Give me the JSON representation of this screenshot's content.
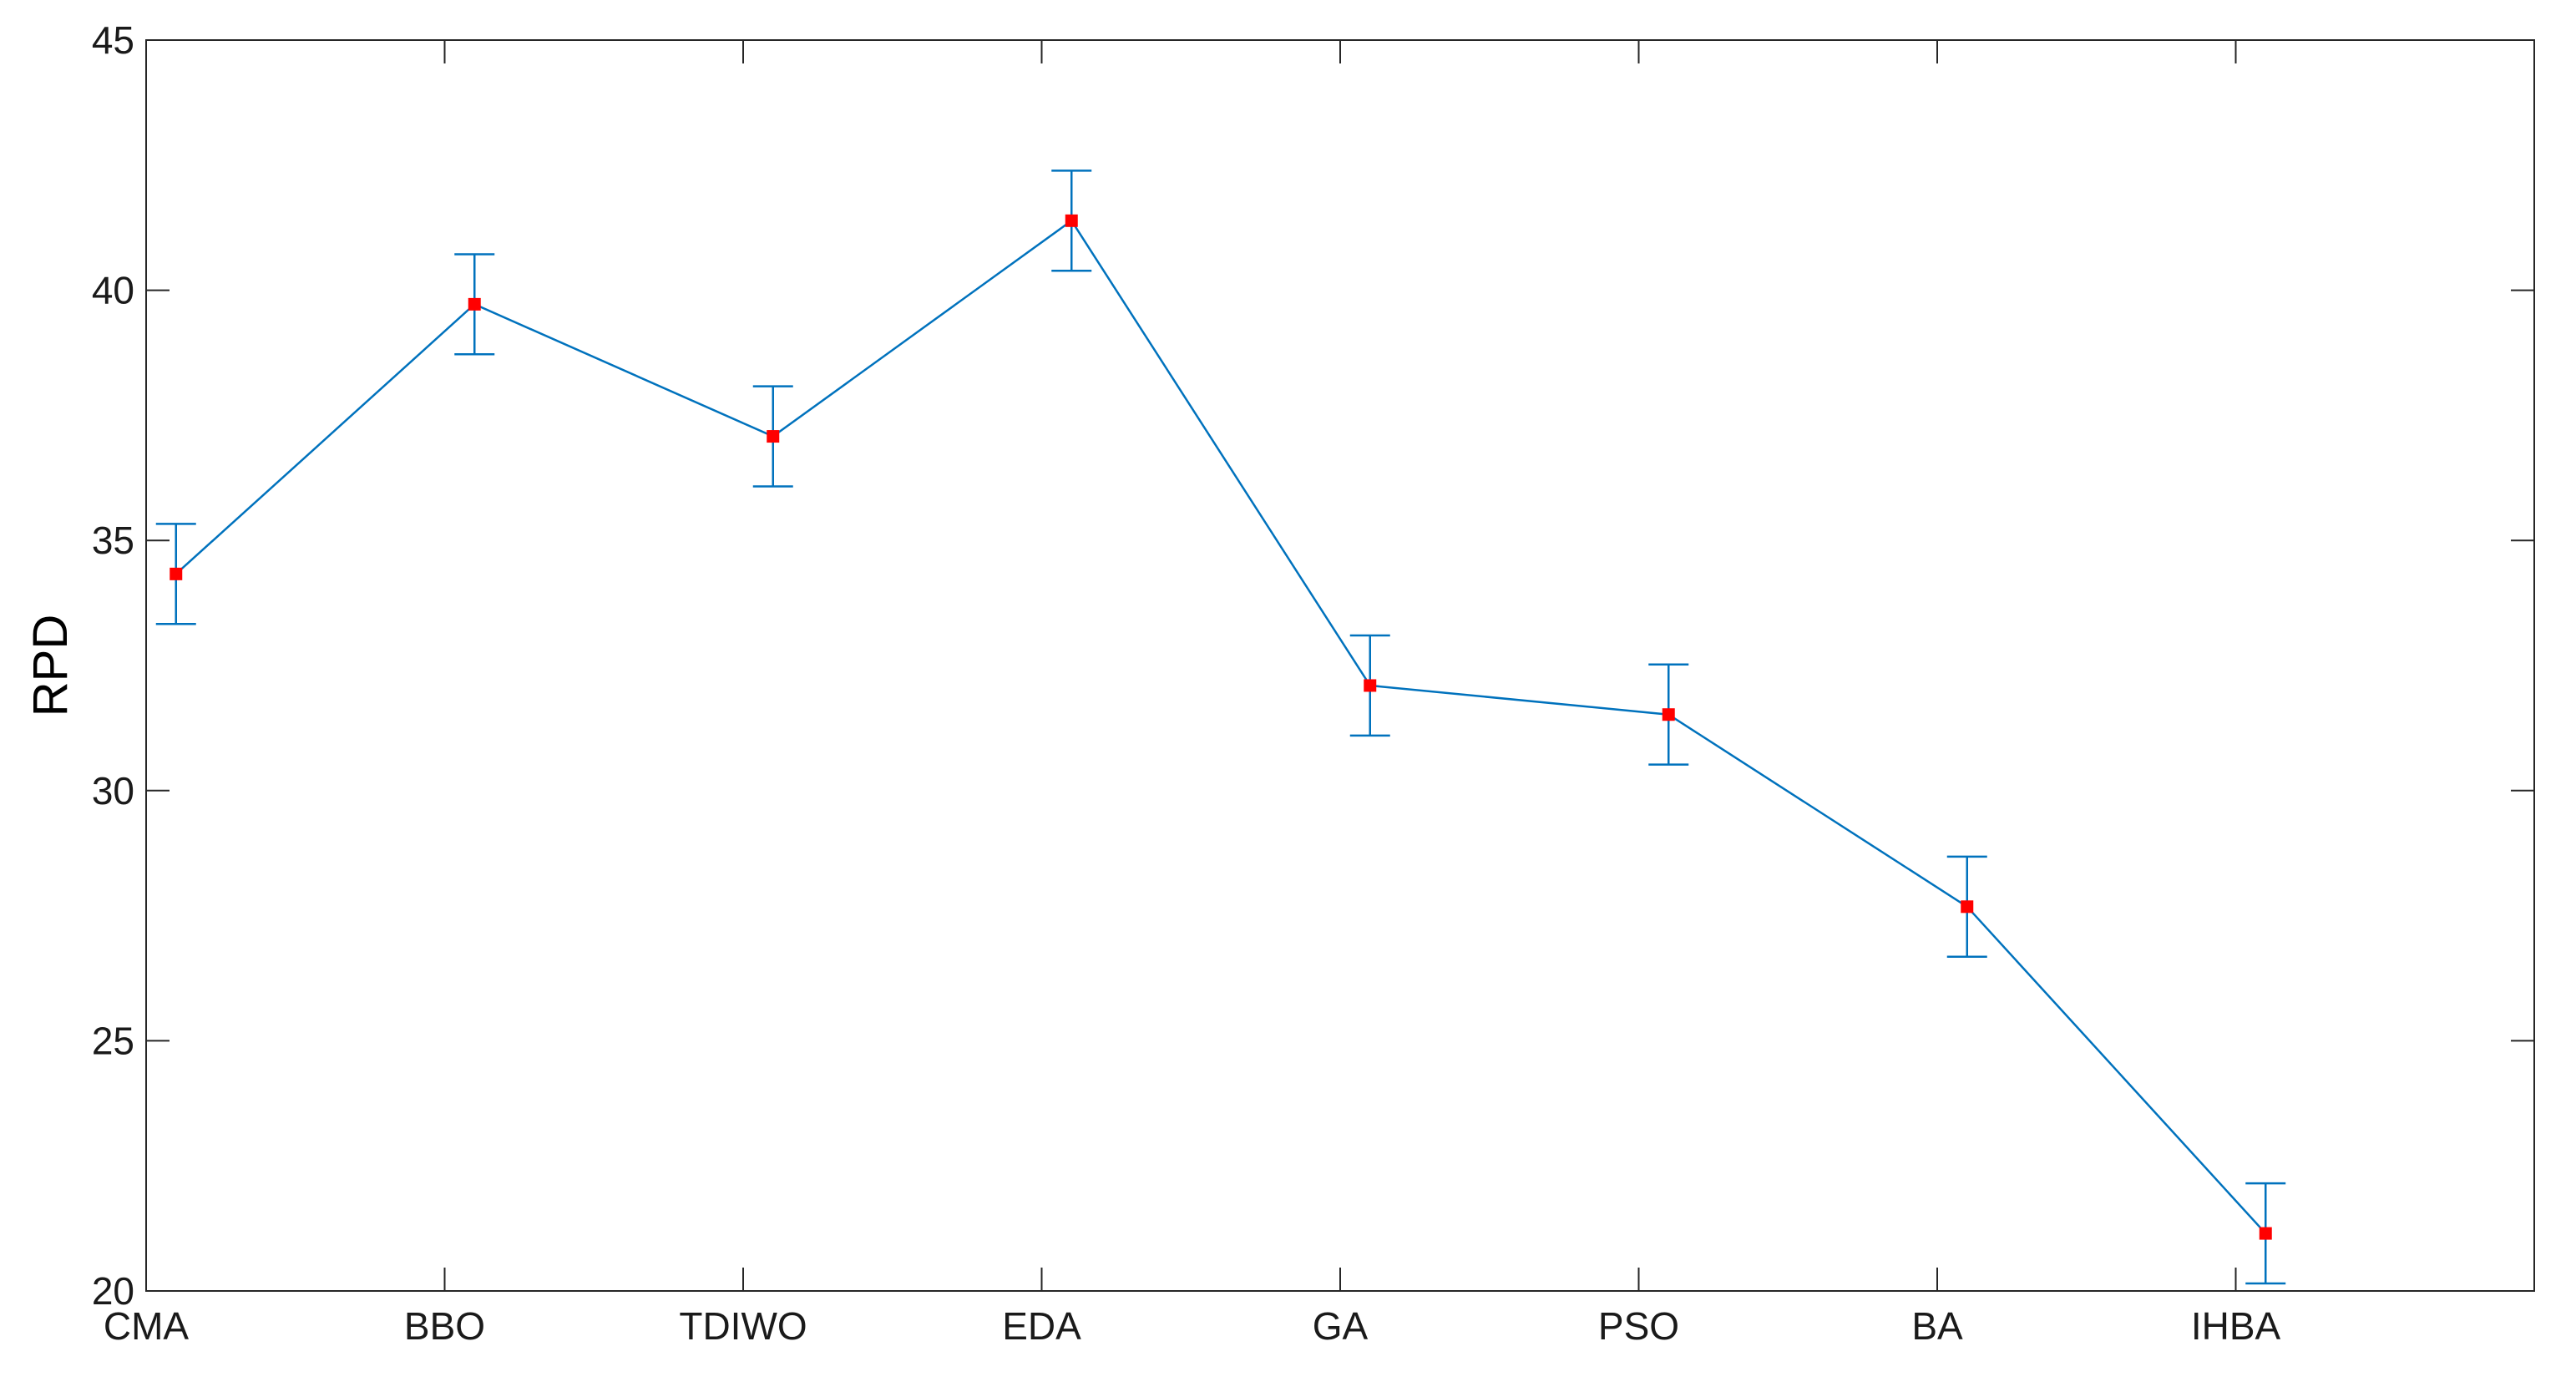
{
  "chart_data": {
    "type": "line",
    "title": "",
    "xlabel": "",
    "ylabel": "RPD",
    "categories": [
      "CMA",
      "BBO",
      "TDIWO",
      "EDA",
      "GA",
      "PSO",
      "BA",
      "IHBA"
    ],
    "x_positions": [
      0,
      1,
      2,
      3,
      4,
      5,
      6,
      7
    ],
    "xlim": [
      0,
      8
    ],
    "ylim": [
      20,
      45
    ],
    "yticks": [
      20,
      25,
      30,
      35,
      40,
      45
    ],
    "grid": false,
    "series": [
      {
        "x": [
          0.1,
          1.1,
          2.1,
          3.1,
          4.1,
          5.1,
          6.1,
          7.1
        ],
        "values": [
          34.33,
          39.72,
          37.08,
          41.39,
          32.1,
          31.52,
          27.68,
          21.15
        ],
        "error": [
          1.0,
          1.0,
          1.0,
          1.0,
          1.0,
          1.0,
          1.0,
          1.0
        ],
        "line_color": "#0072BD",
        "marker_color": "#FF0000",
        "marker": "square"
      }
    ],
    "axis_color": "#262626"
  }
}
